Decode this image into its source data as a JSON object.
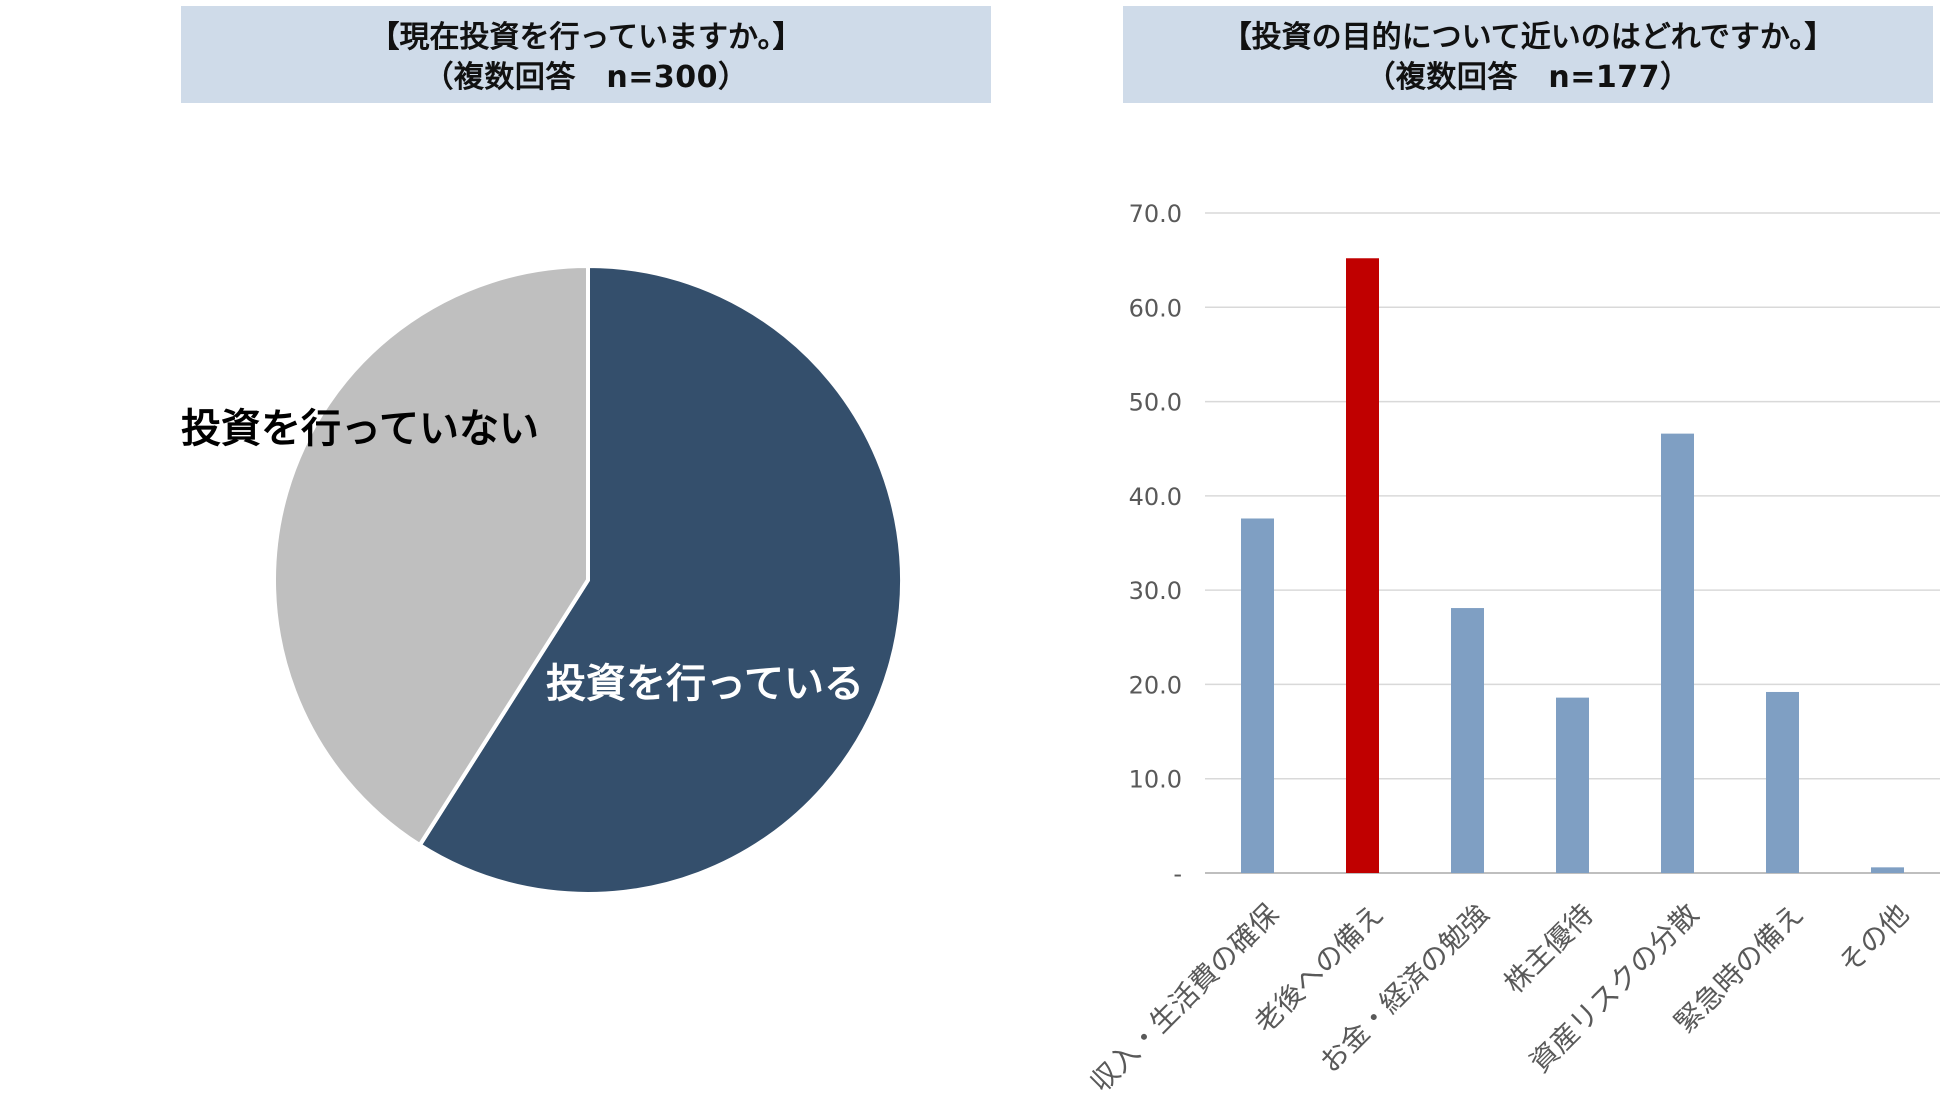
{
  "charts": {
    "left": {
      "title_line1": "【現在投資を行っていますか。】",
      "title_line2": "（複数回答　n=300）"
    },
    "right": {
      "title_line1": "【投資の目的について近いのはどれですか。】",
      "title_line2": "（複数回答　n=177）"
    }
  },
  "chart_data": [
    {
      "type": "pie",
      "title": "【現在投資を行っていますか。】（複数回答　n=300）",
      "slices": [
        {
          "label": "投資を行っている",
          "value": 59.0,
          "color": "#344f6c",
          "label_color": "#ffffff"
        },
        {
          "label": "投資を行っていない",
          "value": 41.0,
          "color": "#bfbfbf",
          "label_color": "#000000"
        }
      ],
      "start_angle": "12 o'clock, clockwise"
    },
    {
      "type": "bar",
      "title": "【投資の目的について近いのはどれですか。】（複数回答　n=177）",
      "categories": [
        "収入・生活費の確保",
        "老後への備え",
        "お金・経済の勉強",
        "株主優待",
        "資産リスクの分散",
        "緊急時の備え",
        "その他"
      ],
      "values": [
        37.6,
        65.2,
        28.1,
        18.6,
        46.6,
        19.2,
        0.6
      ],
      "colors": [
        "#7f9fc3",
        "#c00000",
        "#7f9fc3",
        "#7f9fc3",
        "#7f9fc3",
        "#7f9fc3",
        "#7f9fc3"
      ],
      "ylim": [
        0,
        70
      ],
      "yticks": [
        0,
        10,
        20,
        30,
        40,
        50,
        60,
        70
      ],
      "ytick_labels": [
        "-",
        "10.0",
        "20.0",
        "30.0",
        "40.0",
        "50.0",
        "60.0",
        "70.0"
      ],
      "grid": true,
      "xlabel": "",
      "ylabel": ""
    }
  ]
}
